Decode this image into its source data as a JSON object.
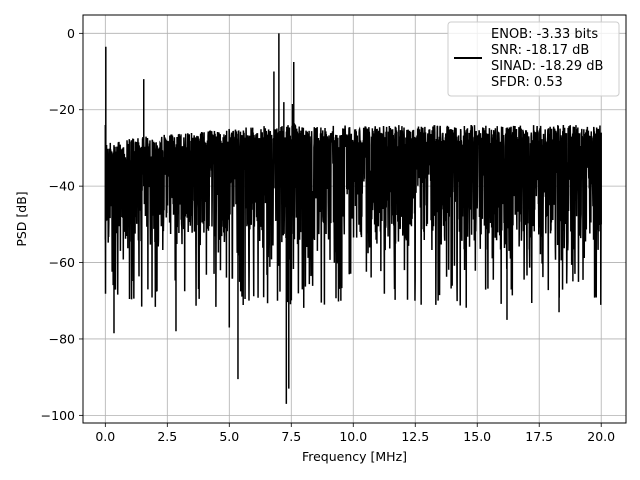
{
  "chart_data": {
    "type": "line",
    "title": "",
    "xlabel": "Frequency [MHz]",
    "ylabel": "PSD [dB]",
    "xlim": [
      -0.9,
      21.0
    ],
    "ylim": [
      -102.0,
      4.8
    ],
    "xticks": [
      0.0,
      2.5,
      5.0,
      7.5,
      10.0,
      12.5,
      15.0,
      17.5,
      20.0
    ],
    "xtick_labels": [
      "0.0",
      "2.5",
      "5.0",
      "7.5",
      "10.0",
      "12.5",
      "15.0",
      "17.5",
      "20.0"
    ],
    "yticks": [
      0,
      -20,
      -40,
      -60,
      -80,
      -100
    ],
    "ytick_labels": [
      "0",
      "−20",
      "−40",
      "−60",
      "−80",
      "−100"
    ],
    "grid": true,
    "legend_position": "top-right",
    "legend_lines": [
      "ENOB: -3.33 bits",
      "SNR: -18.17 dB",
      "SINAD: -18.29 dB",
      "SFDR: 0.53"
    ],
    "series_color": "#000000",
    "series": [
      {
        "name": "ENOB: -3.33 bits\nSNR: -18.17 dB\nSINAD: -18.29 dB\nSFDR: 0.53",
        "x_range": [
          0.0,
          20.0
        ],
        "peaks": [
          {
            "x": 0.02,
            "y": -3.5
          },
          {
            "x": 1.55,
            "y": -12.0
          },
          {
            "x": 6.8,
            "y": -10.0
          },
          {
            "x": 7.0,
            "y": 0.0
          },
          {
            "x": 7.2,
            "y": -18.0
          },
          {
            "x": 7.6,
            "y": -7.5
          },
          {
            "x": 7.55,
            "y": -18.5
          }
        ],
        "dips": [
          {
            "x": 0.35,
            "y": -78.5
          },
          {
            "x": 2.85,
            "y": -78.0
          },
          {
            "x": 5.0,
            "y": -77.0
          },
          {
            "x": 5.35,
            "y": -90.5
          },
          {
            "x": 7.3,
            "y": -97.0
          },
          {
            "x": 7.4,
            "y": -93.0
          },
          {
            "x": 9.5,
            "y": -70.0
          },
          {
            "x": 16.2,
            "y": -75.0
          },
          {
            "x": 18.3,
            "y": -73.0
          }
        ],
        "noise_band": {
          "upper_start": -28,
          "upper_end": -24,
          "lower_typical": -60,
          "lower_extreme": -72
        }
      }
    ]
  }
}
